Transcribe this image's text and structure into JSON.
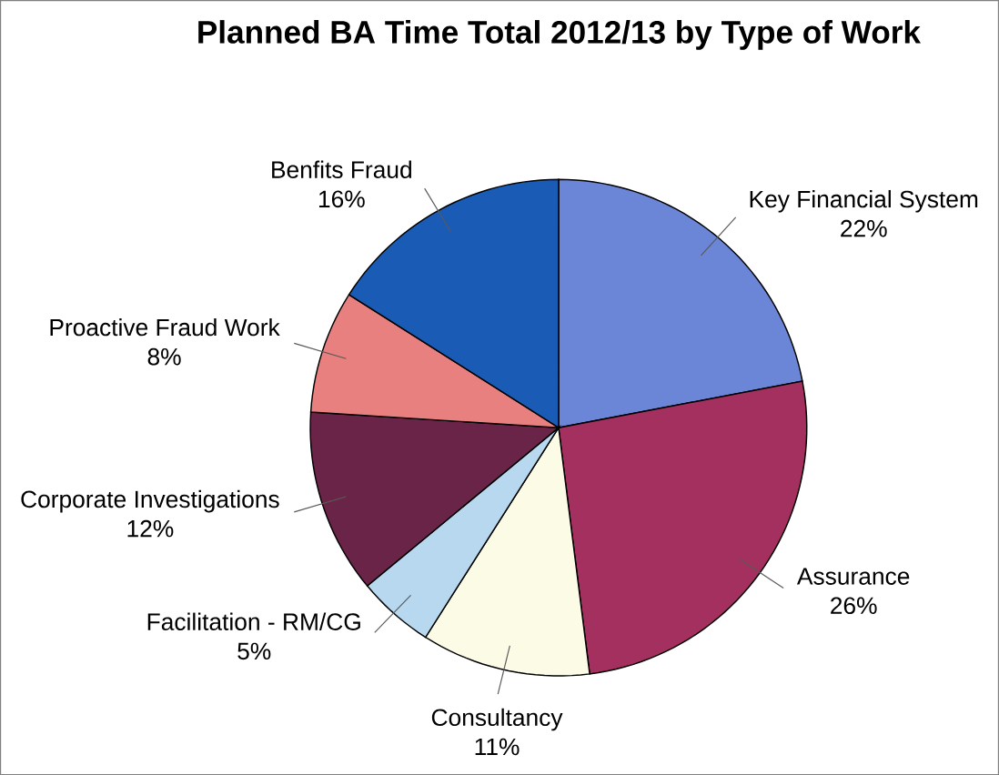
{
  "chart_data": {
    "type": "pie",
    "title": "Planned BA Time Total 2012/13 by Type of Work",
    "categories": [
      "Key Financial System",
      "Assurance",
      "Consultancy",
      "Facilitation - RM/CG",
      "Corporate Investigations",
      "Proactive Fraud Work",
      "Benfits Fraud"
    ],
    "values": [
      22,
      26,
      11,
      5,
      12,
      8,
      16
    ],
    "value_labels": [
      "22%",
      "26%",
      "11%",
      "5%",
      "12%",
      "8%",
      "16%"
    ],
    "colors": [
      "#6b86d6",
      "#a3305e",
      "#fbfbe6",
      "#b8d8f0",
      "#6a2448",
      "#e88080",
      "#1a5bb5"
    ]
  }
}
